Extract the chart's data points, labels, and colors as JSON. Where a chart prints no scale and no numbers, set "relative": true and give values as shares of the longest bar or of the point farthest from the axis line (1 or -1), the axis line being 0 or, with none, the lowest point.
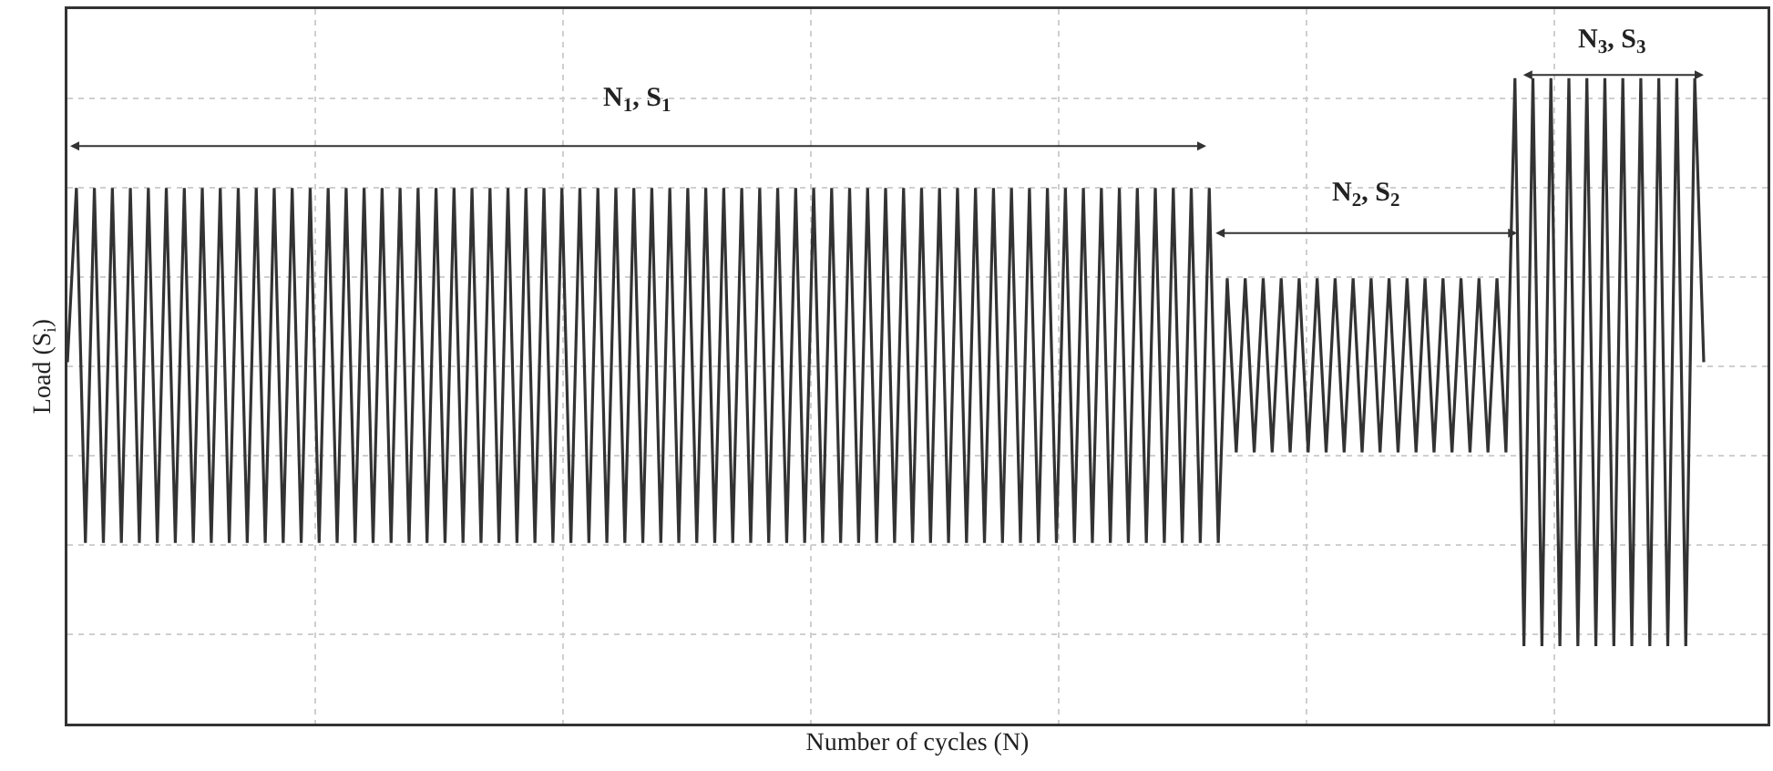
{
  "chart_data": {
    "type": "line",
    "relative": true,
    "grid": true,
    "marker": "none",
    "line_style": "solid",
    "xlabel": "Number of cycles (N)",
    "ylabel": "Load (S$_{i}$)",
    "annotations": [
      "N$_{1}$, S$_{1}$",
      "N$_{2}$, S$_{2}$",
      "N$_{3}$, S$_{3}$"
    ],
    "categories": [
      null,
      null,
      null,
      null,
      null,
      null,
      null,
      null,
      null,
      null,
      null,
      null,
      null,
      null,
      null,
      null,
      null,
      null,
      null,
      null,
      null,
      null,
      null,
      null,
      null,
      null,
      null,
      null,
      null,
      null,
      null,
      null,
      null,
      null,
      null,
      null,
      null,
      null,
      null,
      null,
      null,
      null,
      null,
      null,
      null,
      null,
      null,
      null,
      null,
      null,
      null,
      null,
      null,
      null,
      null,
      null,
      null,
      null,
      null,
      null,
      null,
      null,
      null,
      null,
      null,
      null,
      null,
      null,
      null,
      null,
      null,
      null,
      null,
      null,
      null,
      null,
      null,
      null,
      null,
      null,
      null,
      null,
      null,
      null,
      null,
      null,
      null,
      null,
      null,
      null,
      null,
      null,
      null,
      null,
      null,
      null,
      null,
      null,
      null,
      null,
      null,
      null,
      null,
      null,
      null,
      null,
      null,
      null,
      null,
      null,
      null,
      null,
      null,
      null,
      null,
      null,
      null,
      null,
      null,
      null,
      null,
      null,
      null,
      null,
      null,
      null,
      null,
      null,
      null,
      null,
      null,
      null,
      null,
      null,
      null,
      null,
      null,
      null,
      null,
      null,
      null,
      null,
      null,
      null,
      null,
      null,
      null,
      null,
      null,
      null,
      null,
      null,
      null,
      null,
      null,
      null,
      null,
      null,
      null,
      null,
      null,
      null,
      null,
      null,
      null,
      null,
      null,
      null,
      null,
      null,
      null,
      null,
      null,
      null,
      null,
      null,
      null,
      null,
      null,
      null,
      null,
      null,
      null
    ],
    "series": [
      {
        "color": "#333333",
        "values": [
          0.56,
          0.83,
          0.28,
          0.83,
          0.28,
          0.83,
          0.28,
          0.83,
          0.28,
          0.83,
          0.28,
          0.83,
          0.28,
          0.83,
          0.28,
          0.83,
          0.28,
          0.83,
          0.28,
          0.83,
          0.28,
          0.83,
          0.28,
          0.83,
          0.28,
          0.83,
          0.28,
          0.83,
          0.28,
          0.83,
          0.28,
          0.83,
          0.28,
          0.83,
          0.28,
          0.83,
          0.28,
          0.83,
          0.28,
          0.83,
          0.28,
          0.83,
          0.28,
          0.83,
          0.28,
          0.83,
          0.28,
          0.83,
          0.28,
          0.83,
          0.28,
          0.83,
          0.28,
          0.83,
          0.28,
          0.83,
          0.28,
          0.83,
          0.28,
          0.83,
          0.28,
          0.83,
          0.28,
          0.83,
          0.28,
          0.83,
          0.28,
          0.83,
          0.28,
          0.83,
          0.28,
          0.83,
          0.28,
          0.83,
          0.28,
          0.83,
          0.28,
          0.83,
          0.28,
          0.83,
          0.28,
          0.83,
          0.28,
          0.83,
          0.28,
          0.83,
          0.28,
          0.83,
          0.28,
          0.83,
          0.28,
          0.83,
          0.28,
          0.83,
          0.28,
          0.83,
          0.28,
          0.83,
          0.28,
          0.83,
          0.28,
          0.83,
          0.28,
          0.83,
          0.28,
          0.83,
          0.28,
          0.83,
          0.28,
          0.83,
          0.28,
          0.83,
          0.28,
          0.83,
          0.28,
          0.83,
          0.28,
          0.83,
          0.28,
          0.83,
          0.28,
          0.83,
          0.28,
          0.83,
          0.28,
          0.83,
          0.28,
          0.83,
          0.28,
          0.69,
          0.42,
          0.69,
          0.42,
          0.69,
          0.42,
          0.69,
          0.42,
          0.69,
          0.42,
          0.69,
          0.42,
          0.69,
          0.42,
          0.69,
          0.42,
          0.69,
          0.42,
          0.69,
          0.42,
          0.69,
          0.42,
          0.69,
          0.42,
          0.69,
          0.42,
          0.69,
          0.42,
          0.69,
          0.42,
          0.69,
          0.42,
          1,
          0.12,
          1,
          0.12,
          1,
          0.12,
          1,
          0.12,
          1,
          0.12,
          1,
          0.12,
          1,
          0.12,
          1,
          0.12,
          1,
          0.12,
          1,
          0.12,
          1,
          0.56
        ]
      }
    ]
  }
}
